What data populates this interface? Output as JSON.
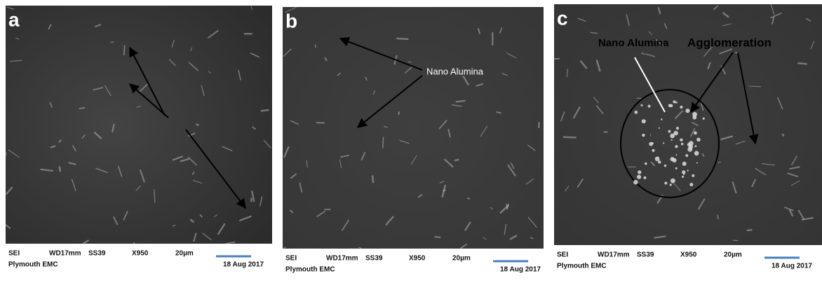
{
  "panels": [
    {
      "label": "a",
      "info": {
        "detector": "SEI",
        "wd": "WD17mm",
        "ss": "SS39",
        "mag": "X950",
        "scale": "20µm",
        "lab": "Plymouth EMC",
        "date": "18 Aug 2017"
      }
    },
    {
      "label": "b",
      "info": {
        "detector": "SEI",
        "wd": "WD17mm",
        "ss": "SS39",
        "mag": "X950",
        "scale": "20µm",
        "lab": "Plymouth EMC",
        "date": "18 Aug 2017"
      },
      "annotations": [
        "Nano Alumina"
      ]
    },
    {
      "label": "c",
      "info": {
        "detector": "SEI",
        "wd": "WD17mm",
        "ss": "SS39",
        "mag": "X950",
        "scale": "20µm",
        "lab": "Plymouth EMC",
        "date": "18 Aug 2017"
      },
      "annotations": [
        "Nano Alumina",
        "Agglomeration"
      ]
    }
  ]
}
